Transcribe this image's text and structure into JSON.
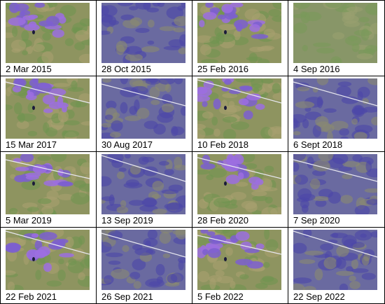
{
  "panels": [
    {
      "label": "2 Mar 2015"
    },
    {
      "label": "28 Oct 2015"
    },
    {
      "label": "25 Feb 2016"
    },
    {
      "label": "4 Sep 2016"
    },
    {
      "label": "15 Mar 2017"
    },
    {
      "label": "30 Aug 2017"
    },
    {
      "label": "10 Feb 2018"
    },
    {
      "label": "6 Sept 2018"
    },
    {
      "label": "5 Mar 2019"
    },
    {
      "label": "13 Sep 2019"
    },
    {
      "label": "28 Feb 2020"
    },
    {
      "label": "7 Sep 2020"
    },
    {
      "label": "22 Feb 2021"
    },
    {
      "label": "26 Sep 2021"
    },
    {
      "label": "5 Feb 2022"
    },
    {
      "label": "22 Sep 2022"
    }
  ]
}
